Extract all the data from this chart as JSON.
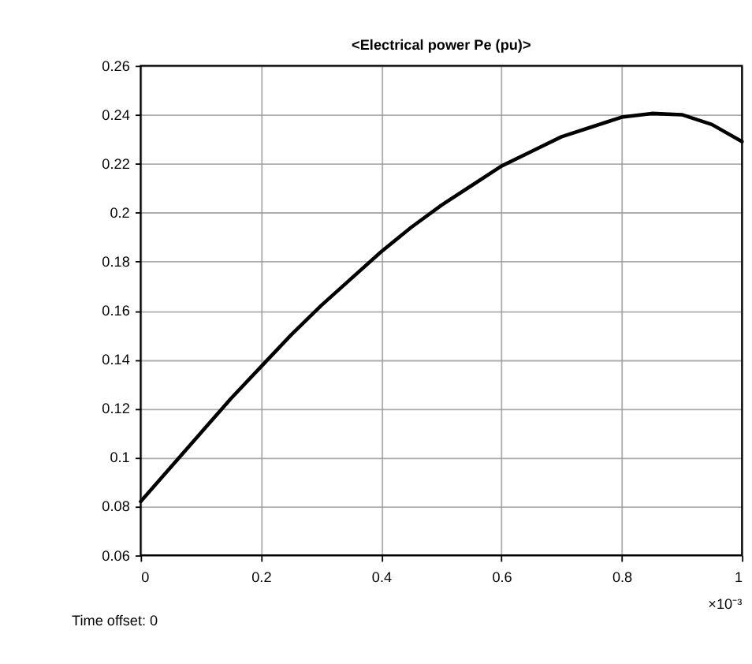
{
  "chart_data": {
    "type": "line",
    "title": "<Electrical power  Pe (pu)>",
    "x": [
      0,
      0.05,
      0.1,
      0.15,
      0.2,
      0.25,
      0.3,
      0.35,
      0.4,
      0.45,
      0.5,
      0.55,
      0.6,
      0.65,
      0.7,
      0.75,
      0.8,
      0.85,
      0.9,
      0.95,
      1.0
    ],
    "series": [
      {
        "color": "#000000",
        "values": [
          0.082,
          0.096,
          0.11,
          0.124,
          0.137,
          0.15,
          0.162,
          0.173,
          0.184,
          0.194,
          0.203,
          0.211,
          0.219,
          0.225,
          0.231,
          0.235,
          0.239,
          0.2405,
          0.24,
          0.236,
          0.229
        ]
      }
    ],
    "xlim": [
      0,
      1
    ],
    "xticks": [
      0,
      0.2,
      0.4,
      0.6,
      0.8,
      1
    ],
    "ylim": [
      0.06,
      0.26
    ],
    "yticks": [
      0.06,
      0.08,
      0.1,
      0.12,
      0.14,
      0.16,
      0.18,
      0.2,
      0.22,
      0.24,
      0.26
    ],
    "grid": true,
    "marker": "none",
    "line_style": "solid",
    "annotations": [
      "×10⁻³",
      "Time offset:  0"
    ]
  }
}
